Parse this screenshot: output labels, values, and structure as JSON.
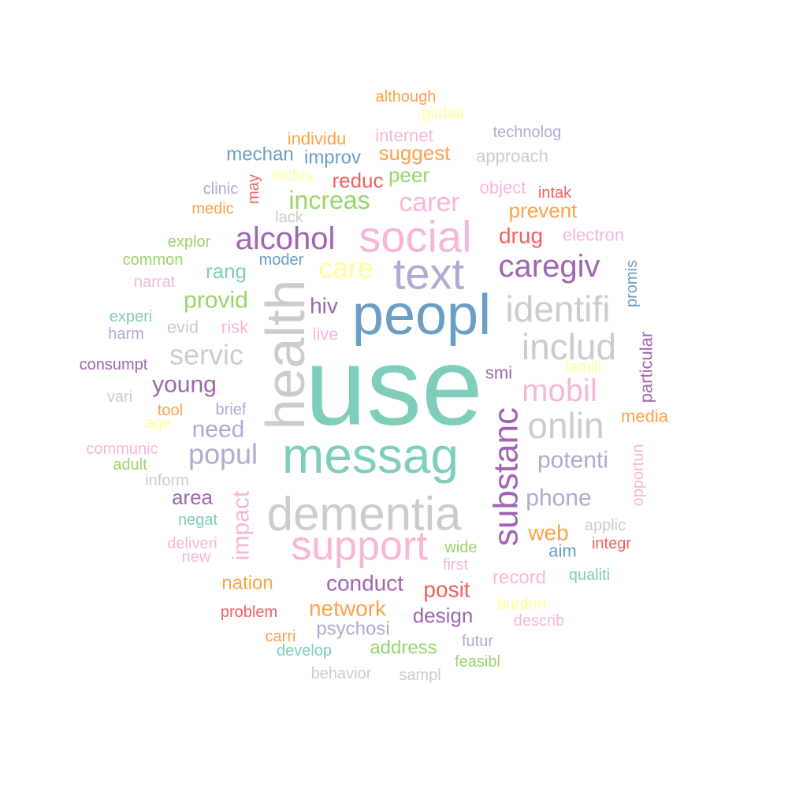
{
  "words": [
    {
      "text": "use",
      "color": "#7fcdbb",
      "rotate": false
    },
    {
      "text": "health",
      "color": "#cccccc",
      "rotate": true
    },
    {
      "text": "peopl",
      "color": "#6a9ec5",
      "rotate": false
    },
    {
      "text": "messag",
      "color": "#7fcdbb",
      "rotate": false
    },
    {
      "text": "dementia",
      "color": "#cccccc",
      "rotate": false
    },
    {
      "text": "social",
      "color": "#f7b6d8",
      "rotate": false
    },
    {
      "text": "text",
      "color": "#b1a9d1",
      "rotate": false
    },
    {
      "text": "support",
      "color": "#f7b6d8",
      "rotate": false
    },
    {
      "text": "substanc",
      "color": "#a064b0",
      "rotate": true
    },
    {
      "text": "identifi",
      "color": "#cccccc",
      "rotate": false
    },
    {
      "text": "includ",
      "color": "#cccccc",
      "rotate": false
    },
    {
      "text": "onlin",
      "color": "#cccccc",
      "rotate": false
    },
    {
      "text": "mobil",
      "color": "#f7b6d8",
      "rotate": false
    },
    {
      "text": "caregiv",
      "color": "#a064b0",
      "rotate": false
    },
    {
      "text": "alcohol",
      "color": "#a064b0",
      "rotate": false
    },
    {
      "text": "care",
      "color": "#ffff99",
      "rotate": false
    },
    {
      "text": "popul",
      "color": "#b1a9d1",
      "rotate": false
    },
    {
      "text": "servic",
      "color": "#cccccc",
      "rotate": false
    },
    {
      "text": "carer",
      "color": "#f7b6d8",
      "rotate": false
    },
    {
      "text": "increas",
      "color": "#98d56a",
      "rotate": false
    },
    {
      "text": "young",
      "color": "#a064b0",
      "rotate": false
    },
    {
      "text": "need",
      "color": "#b1a9d1",
      "rotate": false
    },
    {
      "text": "potenti",
      "color": "#b1a9d1",
      "rotate": false
    },
    {
      "text": "phone",
      "color": "#b1a9d1",
      "rotate": false
    },
    {
      "text": "provid",
      "color": "#98d56a",
      "rotate": false
    },
    {
      "text": "impact",
      "color": "#f7b6d8",
      "rotate": true
    },
    {
      "text": "conduct",
      "color": "#a064b0",
      "rotate": false
    },
    {
      "text": "posit",
      "color": "#f06060",
      "rotate": false
    },
    {
      "text": "network",
      "color": "#fca24a",
      "rotate": false
    },
    {
      "text": "web",
      "color": "#fca24a",
      "rotate": false
    },
    {
      "text": "hiv",
      "color": "#a064b0",
      "rotate": false
    },
    {
      "text": "drug",
      "color": "#f06060",
      "rotate": false
    },
    {
      "text": "area",
      "color": "#a064b0",
      "rotate": false
    },
    {
      "text": "design",
      "color": "#a064b0",
      "rotate": false
    },
    {
      "text": "rang",
      "color": "#7fcdbb",
      "rotate": false
    },
    {
      "text": "suggest",
      "color": "#fca24a",
      "rotate": false
    },
    {
      "text": "prevent",
      "color": "#fca24a",
      "rotate": false
    },
    {
      "text": "peer",
      "color": "#98d56a",
      "rotate": false
    },
    {
      "text": "reduc",
      "color": "#f06060",
      "rotate": false
    },
    {
      "text": "improv",
      "color": "#6a9ec5",
      "rotate": false
    },
    {
      "text": "mechan",
      "color": "#6a9ec5",
      "rotate": false
    },
    {
      "text": "address",
      "color": "#98d56a",
      "rotate": false
    },
    {
      "text": "psychosi",
      "color": "#b1a9d1",
      "rotate": false
    },
    {
      "text": "record",
      "color": "#f7b6d8",
      "rotate": false
    },
    {
      "text": "nation",
      "color": "#fca24a",
      "rotate": false
    },
    {
      "text": "individu",
      "color": "#fca24a",
      "rotate": false
    },
    {
      "text": "internet",
      "color": "#f7b6d8",
      "rotate": false
    },
    {
      "text": "approach",
      "color": "#cccccc",
      "rotate": false
    },
    {
      "text": "object",
      "color": "#f7b6d8",
      "rotate": false
    },
    {
      "text": "electron",
      "color": "#f7b6d8",
      "rotate": false
    },
    {
      "text": "particular",
      "color": "#a064b0",
      "rotate": true
    },
    {
      "text": "media",
      "color": "#fca24a",
      "rotate": false
    },
    {
      "text": "smi",
      "color": "#a064b0",
      "rotate": false
    },
    {
      "text": "risk",
      "color": "#f7b6d8",
      "rotate": false
    },
    {
      "text": "evid",
      "color": "#cccccc",
      "rotate": false
    },
    {
      "text": "live",
      "color": "#f7b6d8",
      "rotate": false
    },
    {
      "text": "experi",
      "color": "#7fcdbb",
      "rotate": false
    },
    {
      "text": "harm",
      "color": "#b1a9d1",
      "rotate": false
    },
    {
      "text": "consumpt",
      "color": "#a064b0",
      "rotate": false
    },
    {
      "text": "moder",
      "color": "#6a9ec5",
      "rotate": false
    },
    {
      "text": "explor",
      "color": "#98d56a",
      "rotate": false
    },
    {
      "text": "common",
      "color": "#98d56a",
      "rotate": false
    },
    {
      "text": "narrat",
      "color": "#f7b6d8",
      "rotate": false
    },
    {
      "text": "medic",
      "color": "#fca24a",
      "rotate": false
    },
    {
      "text": "clinic",
      "color": "#b1a9d1",
      "rotate": false
    },
    {
      "text": "may",
      "color": "#f06060",
      "rotate": true
    },
    {
      "text": "inclus",
      "color": "#ffff99",
      "rotate": false
    },
    {
      "text": "lack",
      "color": "#cccccc",
      "rotate": false
    },
    {
      "text": "although",
      "color": "#fca24a",
      "rotate": false
    },
    {
      "text": "global",
      "color": "#ffff99",
      "rotate": false
    },
    {
      "text": "technolog",
      "color": "#b1a9d1",
      "rotate": false
    },
    {
      "text": "intak",
      "color": "#f06060",
      "rotate": false
    },
    {
      "text": "promis",
      "color": "#6a9ec5",
      "rotate": true
    },
    {
      "text": "famili",
      "color": "#ffff99",
      "rotate": false
    },
    {
      "text": "opportun",
      "color": "#f7b6d8",
      "rotate": true
    },
    {
      "text": "applic",
      "color": "#cccccc",
      "rotate": false
    },
    {
      "text": "integr",
      "color": "#f06060",
      "rotate": false
    },
    {
      "text": "aim",
      "color": "#6a9ec5",
      "rotate": false
    },
    {
      "text": "qualiti",
      "color": "#7fcdbb",
      "rotate": false
    },
    {
      "text": "burden",
      "color": "#ffff99",
      "rotate": false
    },
    {
      "text": "describ",
      "color": "#f7b6d8",
      "rotate": false
    },
    {
      "text": "futur",
      "color": "#b1a9d1",
      "rotate": false
    },
    {
      "text": "feasibl",
      "color": "#98d56a",
      "rotate": false
    },
    {
      "text": "sampl",
      "color": "#cccccc",
      "rotate": false
    },
    {
      "text": "behavior",
      "color": "#cccccc",
      "rotate": false
    },
    {
      "text": "develop",
      "color": "#7fcdbb",
      "rotate": false
    },
    {
      "text": "carri",
      "color": "#fca24a",
      "rotate": false
    },
    {
      "text": "problem",
      "color": "#f06060",
      "rotate": false
    },
    {
      "text": "new",
      "color": "#f7b6d8",
      "rotate": false
    },
    {
      "text": "deliveri",
      "color": "#f7b6d8",
      "rotate": false
    },
    {
      "text": "negat",
      "color": "#7fcdbb",
      "rotate": false
    },
    {
      "text": "inform",
      "color": "#cccccc",
      "rotate": false
    },
    {
      "text": "adult",
      "color": "#98d56a",
      "rotate": false
    },
    {
      "text": "communic",
      "color": "#f7b6d8",
      "rotate": false
    },
    {
      "text": "age",
      "color": "#ffff99",
      "rotate": false
    },
    {
      "text": "tool",
      "color": "#fca24a",
      "rotate": false
    },
    {
      "text": "brief",
      "color": "#b1a9d1",
      "rotate": false
    },
    {
      "text": "vari",
      "color": "#cccccc",
      "rotate": false
    },
    {
      "text": "wide",
      "color": "#98d56a",
      "rotate": false
    },
    {
      "text": "first",
      "color": "#f7b6d8",
      "rotate": false
    }
  ]
}
